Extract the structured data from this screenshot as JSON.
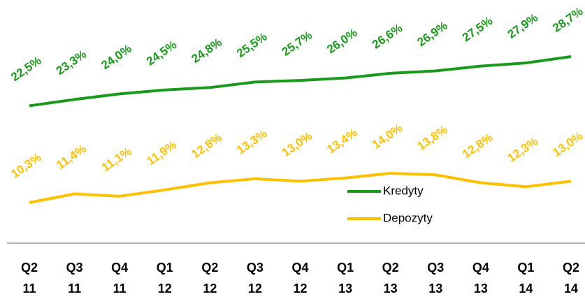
{
  "chart_data": {
    "type": "line",
    "categories": [
      "Q2\n11",
      "Q3\n11",
      "Q4\n11",
      "Q1\n12",
      "Q2\n12",
      "Q3\n12",
      "Q4\n12",
      "Q1\n13",
      "Q2\n13",
      "Q3\n13",
      "Q4\n13",
      "Q1\n14",
      "Q2\n14"
    ],
    "series": [
      {
        "name": "Kredyty",
        "color": "#1a9a1a",
        "values": [
          22.5,
          23.3,
          24.0,
          24.5,
          24.8,
          25.5,
          25.7,
          26.0,
          26.6,
          26.9,
          27.5,
          27.9,
          28.7
        ],
        "value_labels": [
          "22,5%",
          "23,3%",
          "24,0%",
          "24,5%",
          "24,8%",
          "25,5%",
          "25,7%",
          "26,0%",
          "26,6%",
          "26,9%",
          "27,5%",
          "27,9%",
          "28,7%"
        ]
      },
      {
        "name": "Depozyty",
        "color": "#ffc000",
        "values": [
          10.3,
          11.4,
          11.1,
          11.9,
          12.8,
          13.3,
          13.0,
          13.4,
          14.0,
          13.8,
          12.8,
          12.3,
          13.0
        ],
        "value_labels": [
          "10,3%",
          "11,4%",
          "11,1%",
          "11,9%",
          "12,8%",
          "13,3%",
          "13,0%",
          "13,4%",
          "14,0%",
          "13,8%",
          "12,8%",
          "12,3%",
          "13,0%"
        ]
      }
    ]
  }
}
